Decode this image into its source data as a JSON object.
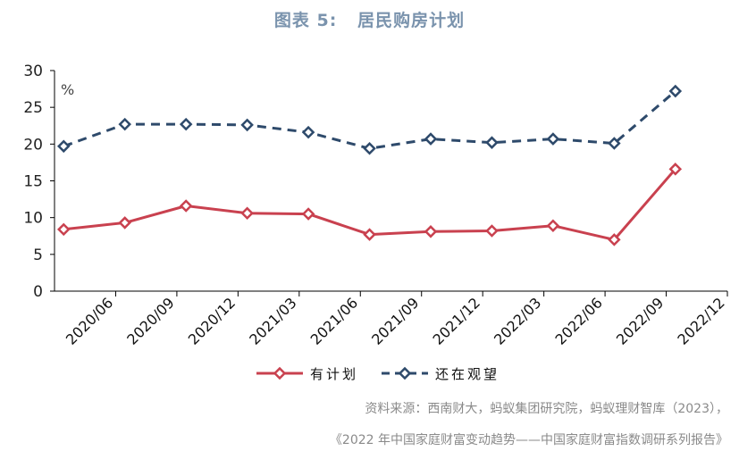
{
  "figure": {
    "title": "图表 5:   居民购房计划",
    "source_line1": "资料来源：西南财大，蚂蚁集团研究院，蚂蚁理财智库（2023），",
    "source_line2": "《2022 年中国家庭财富变动趋势——中国家庭财富指数调研系列报告》"
  },
  "chart_data": {
    "type": "line",
    "title": "居民购房计划",
    "unit_label": "%",
    "categories": [
      "2020/06",
      "2020/09",
      "2020/12",
      "2021/03",
      "2021/06",
      "2021/09",
      "2021/12",
      "2022/03",
      "2022/06",
      "2022/09",
      "2022/12"
    ],
    "series": [
      {
        "name": "有计划",
        "color": "#c9414f",
        "line_style": "solid",
        "values": [
          8.4,
          9.3,
          11.6,
          10.6,
          10.5,
          7.7,
          8.1,
          8.2,
          8.9,
          7.0,
          16.6
        ]
      },
      {
        "name": "还在观望",
        "color": "#2e4a6b",
        "line_style": "dashed",
        "values": [
          19.7,
          22.7,
          22.7,
          22.6,
          21.6,
          19.4,
          20.7,
          20.2,
          20.7,
          20.1,
          27.2
        ]
      }
    ],
    "ylim": [
      0,
      30
    ],
    "yticks": [
      0,
      5,
      10,
      15,
      20,
      25,
      30
    ],
    "legend_position": "bottom-center",
    "grid": false
  }
}
